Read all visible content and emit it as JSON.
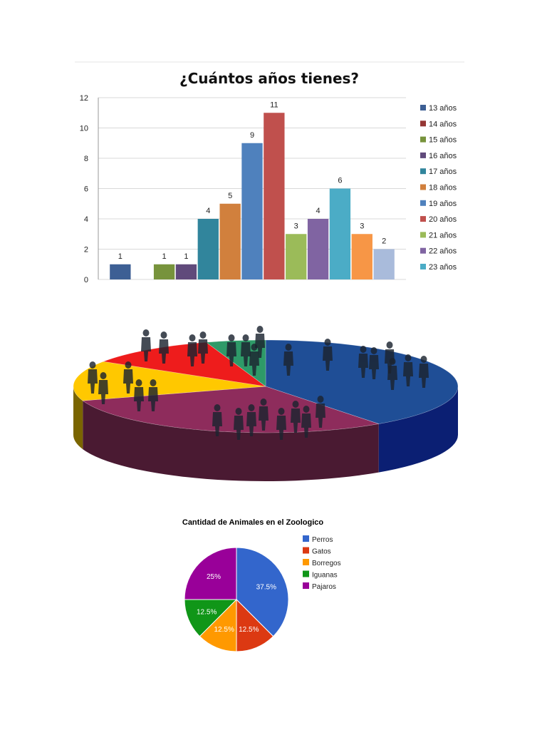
{
  "chart_data": [
    {
      "type": "bar",
      "title": "¿Cuántos años tienes?",
      "xlabel": "",
      "ylabel": "",
      "ylim": [
        0,
        12
      ],
      "yticks": [
        0,
        2,
        4,
        6,
        8,
        10,
        12
      ],
      "grid": true,
      "legend_position": "right",
      "series": [
        {
          "name": "13 años",
          "value": 1,
          "color": "#3d5f94"
        },
        {
          "name": "14 años",
          "value": 0,
          "color": "#953735"
        },
        {
          "name": "15 años",
          "value": 1,
          "color": "#77933c"
        },
        {
          "name": "16 años",
          "value": 1,
          "color": "#604a7b"
        },
        {
          "name": "17 años",
          "value": 4,
          "color": "#31859c"
        },
        {
          "name": "18 años",
          "value": 5,
          "color": "#d1803d"
        },
        {
          "name": "19 años",
          "value": 9,
          "color": "#4f81bd"
        },
        {
          "name": "20 años",
          "value": 11,
          "color": "#c0504d"
        },
        {
          "name": "21 años",
          "value": 3,
          "color": "#9bbb59"
        },
        {
          "name": "22 años",
          "value": 4,
          "color": "#8064a2"
        },
        {
          "name": "23 años",
          "value": 6,
          "color": "#4bacc6"
        },
        {
          "name": "",
          "value": 3,
          "color": "#f79646"
        },
        {
          "name": "",
          "value": 2,
          "color": "#a9bbdb"
        }
      ]
    },
    {
      "type": "pie",
      "style": "3d",
      "slices": [
        {
          "value": 40,
          "color": "#1f4e96",
          "side": "#0b1f73"
        },
        {
          "value": 30,
          "color": "#8e2c5c",
          "side": "#4a1a32"
        },
        {
          "value": 14,
          "color": "#ffc800",
          "side": "#7a6500"
        },
        {
          "value": 11,
          "color": "#ee1c1c",
          "side": "#8a1010"
        },
        {
          "value": 5,
          "color": "#2e9a68",
          "side": "#1b5a3c"
        }
      ]
    },
    {
      "type": "pie",
      "title": "Cantidad de Animales en el Zoologico",
      "legend_position": "right",
      "slices": [
        {
          "label": "Perros",
          "value": 37.5,
          "pct": "37.5%",
          "color": "#3366cc"
        },
        {
          "label": "Gatos",
          "value": 12.5,
          "pct": "12.5%",
          "color": "#dc3912"
        },
        {
          "label": "Borregos",
          "value": 12.5,
          "pct": "12.5%",
          "color": "#ff9900"
        },
        {
          "label": "Iguanas",
          "value": 12.5,
          "pct": "12.5%",
          "color": "#109618"
        },
        {
          "label": "Pajaros",
          "value": 25,
          "pct": "25%",
          "color": "#990099"
        }
      ]
    }
  ]
}
